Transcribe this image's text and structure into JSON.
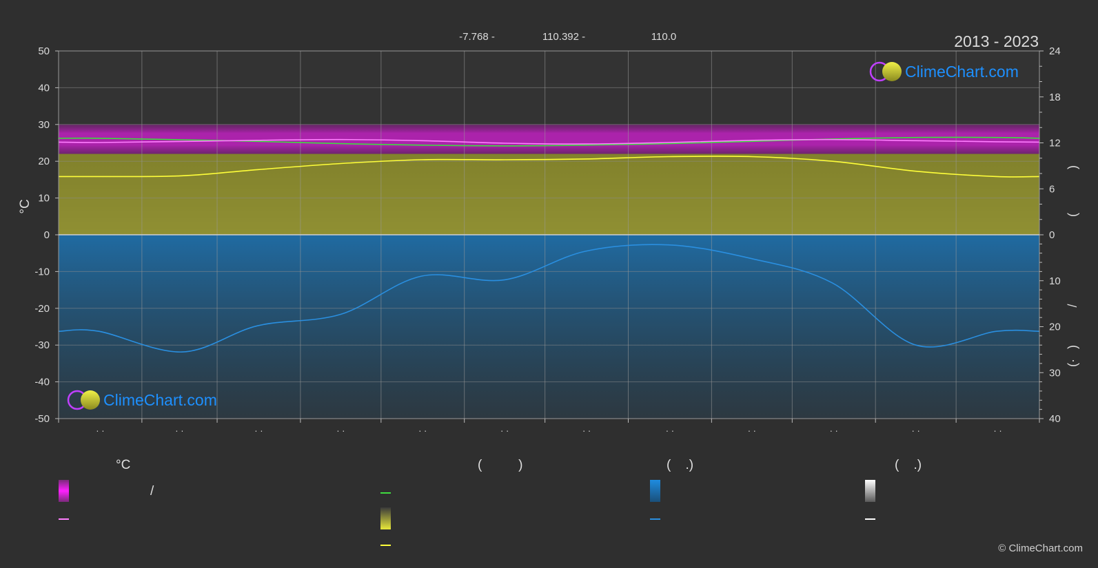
{
  "header": {
    "lat": "-7.768 -",
    "lon": "110.392 -",
    "elev": "110.0",
    "years": "2013 - 2023"
  },
  "logo_text": "ClimeChart.com",
  "copyright": "© ClimeChart.com",
  "colors": {
    "background": "#2f2f2f",
    "temp_band": "#c020c0",
    "sun_band": "#b8b832",
    "rain_band": "#1f6ea8",
    "mean_temp_line": "#ff7fff",
    "daylight_line": "#3fdc3f",
    "sunshine_line": "#ffff3a",
    "precip_line": "#2a8fe0",
    "logo_blue": "#1e90ff"
  },
  "legend": {
    "col1_title": "°C",
    "col1_slash": "/",
    "col2_title": "(          )",
    "col3_title": "(    .)",
    "col4_title": "(    .)"
  },
  "chart_data": {
    "type": "line",
    "x": [
      0,
      15,
      46,
      74,
      105,
      135,
      166,
      196,
      227,
      258,
      288,
      319,
      349,
      365
    ],
    "x_ticks": [
      0,
      31,
      59,
      90,
      120,
      151,
      181,
      212,
      243,
      273,
      304,
      334,
      365
    ],
    "x_tick_labels": [
      "· ·",
      "· ·",
      "· ·",
      "· ·",
      "· ·",
      "· ·",
      "· ·",
      "· ·",
      "· ·",
      "· ·",
      "· ·",
      "· ·"
    ],
    "left_axis": {
      "label": "°C",
      "ylim": [
        -50,
        50
      ],
      "ticks": [
        50,
        40,
        30,
        20,
        10,
        0,
        -10,
        -20,
        -30,
        -40,
        -50
      ]
    },
    "right_axis_upper": {
      "ylim": [
        0,
        24
      ],
      "ticks": [
        24,
        18,
        12,
        6,
        0
      ]
    },
    "right_axis_lower": {
      "ylim": [
        0,
        40
      ],
      "ticks": [
        10,
        20,
        30,
        40
      ]
    },
    "right_axis_label_glyphs": [
      ")",
      "(",
      "/",
      ")",
      "(·"
    ],
    "series": [
      {
        "key": "daylight",
        "axis": "right_upper",
        "values": [
          12.6,
          12.6,
          12.4,
          12.2,
          11.9,
          11.7,
          11.6,
          11.7,
          11.9,
          12.2,
          12.5,
          12.7,
          12.7,
          12.6
        ]
      },
      {
        "key": "mean_temp",
        "axis": "left",
        "values": [
          25.2,
          25.1,
          25.4,
          25.7,
          25.9,
          25.6,
          24.9,
          24.7,
          25.1,
          25.7,
          25.9,
          25.6,
          25.3,
          25.2
        ]
      },
      {
        "key": "sunshine",
        "axis": "right_upper",
        "values": [
          7.6,
          7.6,
          7.7,
          8.5,
          9.3,
          9.8,
          9.8,
          9.9,
          10.2,
          10.2,
          9.6,
          8.3,
          7.6,
          7.6
        ]
      },
      {
        "key": "precip",
        "axis": "right_lower",
        "values": [
          21.0,
          21.0,
          25.5,
          19.8,
          17.3,
          9.0,
          9.8,
          3.6,
          2.2,
          5.2,
          10.5,
          24.0,
          21.0,
          21.0
        ]
      }
    ],
    "bands": {
      "temp_range": {
        "axis": "left",
        "low": 22,
        "high": 30
      },
      "sunshine_fill": {
        "axis": "left",
        "low": 0,
        "high": 22
      },
      "precip_fill": {
        "axis": "right_lower",
        "low": 0,
        "high": 40
      }
    },
    "grid": true
  }
}
